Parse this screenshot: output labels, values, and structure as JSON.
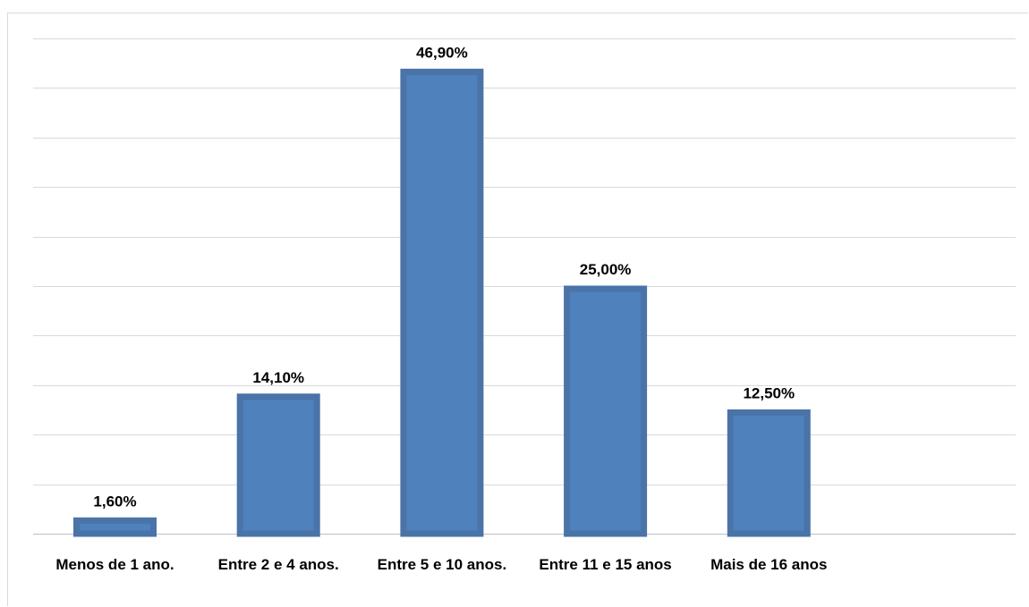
{
  "chart_data": {
    "type": "bar",
    "categories": [
      "Menos de 1 ano.",
      "Entre 2 e 4 anos.",
      "Entre 5 e 10 anos.",
      "Entre 11 e 15 anos",
      "Mais de 16 anos"
    ],
    "values": [
      1.6,
      14.1,
      46.9,
      25.0,
      12.5
    ],
    "data_labels": [
      "1,60%",
      "14,10%",
      "46,90%",
      "25,00%",
      "12,50%"
    ],
    "title": "",
    "xlabel": "",
    "ylabel": "",
    "ylim": [
      0,
      50
    ],
    "grid": true,
    "legend": "none",
    "colors": {
      "bar_fill": "#4f81bd",
      "bar_border": "#4a73a8",
      "grid": "#d9d9d9",
      "axis": "#bfbfbf"
    }
  }
}
